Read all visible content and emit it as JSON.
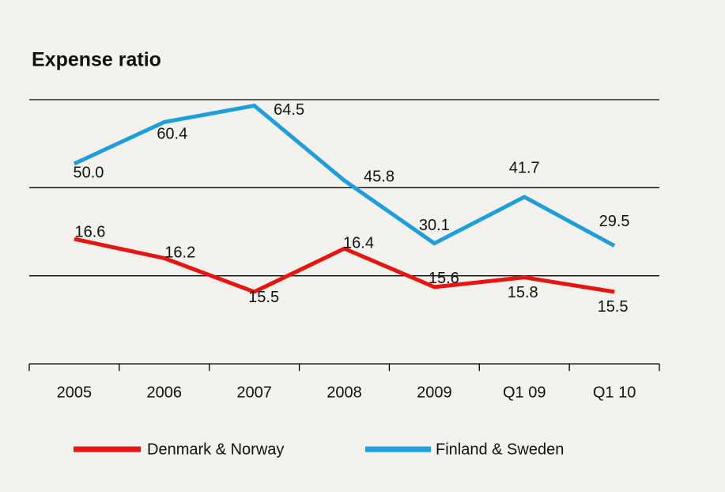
{
  "chart_data": {
    "type": "line",
    "title": "Expense ratio",
    "categories": [
      "2005",
      "2006",
      "2007",
      "2008",
      "2009",
      "Q1 09",
      "Q1 10"
    ],
    "series": [
      {
        "name": "Denmark & Norway",
        "color": "#e8140f",
        "axis": "y2",
        "values": [
          16.6,
          16.2,
          15.5,
          16.4,
          15.6,
          15.8,
          15.5
        ]
      },
      {
        "name": "Finland & Sweden",
        "color": "#1e9fdb",
        "values": [
          50.0,
          60.4,
          64.5,
          45.8,
          30.1,
          41.7,
          29.5
        ],
        "value_labels": [
          "50.0",
          "60.4",
          "64.5",
          "45.8",
          "30.1",
          "41.7",
          "29.5"
        ]
      }
    ],
    "ylim": [
      0,
      66
    ],
    "yticks": [
      0,
      22,
      44,
      66
    ],
    "y2lim": [
      14,
      19.5
    ],
    "grid": true
  }
}
